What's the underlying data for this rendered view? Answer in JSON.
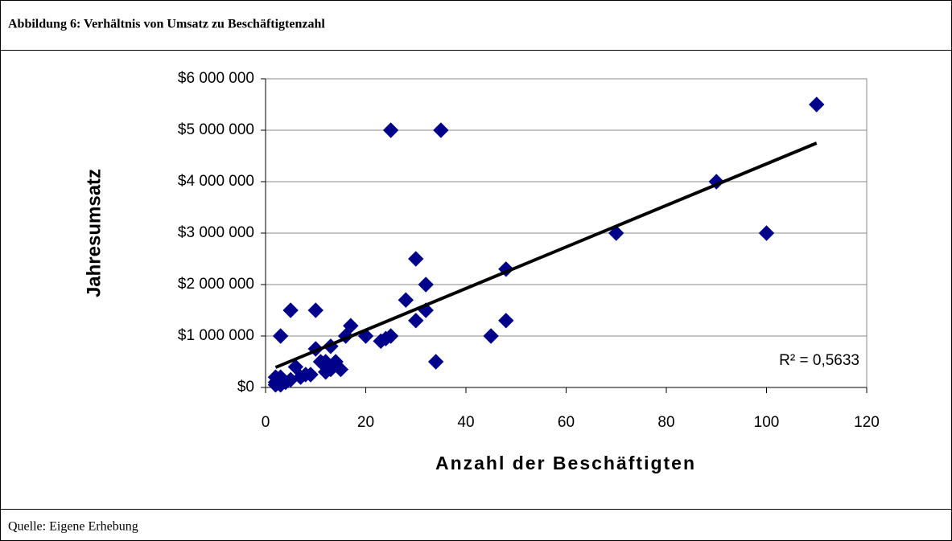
{
  "chart_data": {
    "type": "scatter",
    "title": "Abbildung 6:   Verhältnis von Umsatz zu Beschäftigtenzahl",
    "source": "Quelle: Eigene Erhebung",
    "xlabel": "Anzahl der Beschäftigten",
    "ylabel": "Jahresumsatz",
    "annotation": "R² = 0,5633",
    "color": "#00008b",
    "x": [
      2,
      2,
      3,
      3,
      4,
      5,
      3,
      5,
      6,
      7,
      8,
      9,
      10,
      10,
      11,
      12,
      12,
      13,
      13,
      14,
      15,
      16,
      17,
      20,
      23,
      24,
      25,
      25,
      28,
      30,
      30,
      32,
      32,
      34,
      35,
      45,
      48,
      48,
      70,
      90,
      100,
      110,
      2,
      3
    ],
    "values": [
      200000,
      100000,
      50000,
      150000,
      100000,
      150000,
      1000000,
      1500000,
      400000,
      200000,
      250000,
      250000,
      1500000,
      750000,
      500000,
      300000,
      500000,
      350000,
      800000,
      500000,
      350000,
      1000000,
      1200000,
      1000000,
      900000,
      950000,
      1000000,
      5000000,
      1700000,
      2500000,
      1300000,
      2000000,
      1500000,
      500000,
      5000000,
      1000000,
      2300000,
      1300000,
      3000000,
      4000000,
      3000000,
      5500000,
      50000,
      200000
    ],
    "trendline": {
      "x": [
        2,
        110
      ],
      "values": [
        390000,
        4750000
      ],
      "color": "#000000"
    },
    "xlim": [
      0,
      120
    ],
    "xticks": [
      0,
      20,
      40,
      60,
      80,
      100,
      120
    ],
    "ylim": [
      0,
      6000000
    ],
    "yticks": [
      {
        "value": 0,
        "label": "$0"
      },
      {
        "value": 1000000,
        "label": "$1 000 000"
      },
      {
        "value": 2000000,
        "label": "$2 000 000"
      },
      {
        "value": 3000000,
        "label": "$3 000 000"
      },
      {
        "value": 4000000,
        "label": "$4 000 000"
      },
      {
        "value": 5000000,
        "label": "$5 000 000"
      },
      {
        "value": 6000000,
        "label": "$6 000 000"
      }
    ],
    "grid": true
  }
}
